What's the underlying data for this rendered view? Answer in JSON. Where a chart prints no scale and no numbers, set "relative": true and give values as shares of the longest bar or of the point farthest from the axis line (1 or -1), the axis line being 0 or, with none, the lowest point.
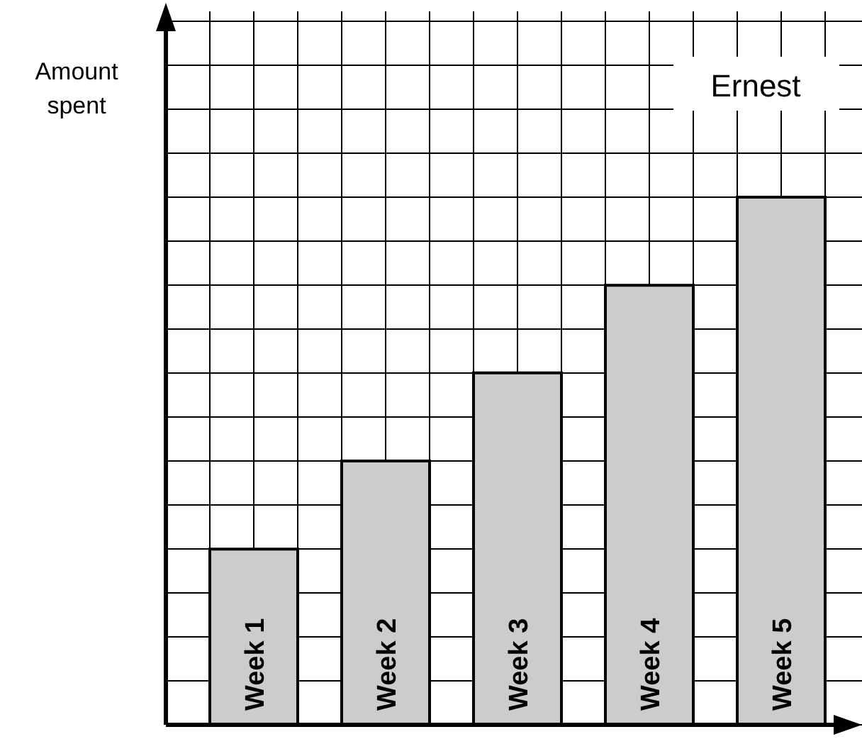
{
  "chart_data": {
    "type": "bar",
    "relative": true,
    "title": "Ernest",
    "ylabel": "Amount spent",
    "categories": [
      "Week 1",
      "Week 2",
      "Week 3",
      "Week 4",
      "Week 5"
    ],
    "values": [
      0.333,
      0.5,
      0.667,
      0.833,
      1
    ],
    "color": "#cccccc",
    "grid": true
  }
}
